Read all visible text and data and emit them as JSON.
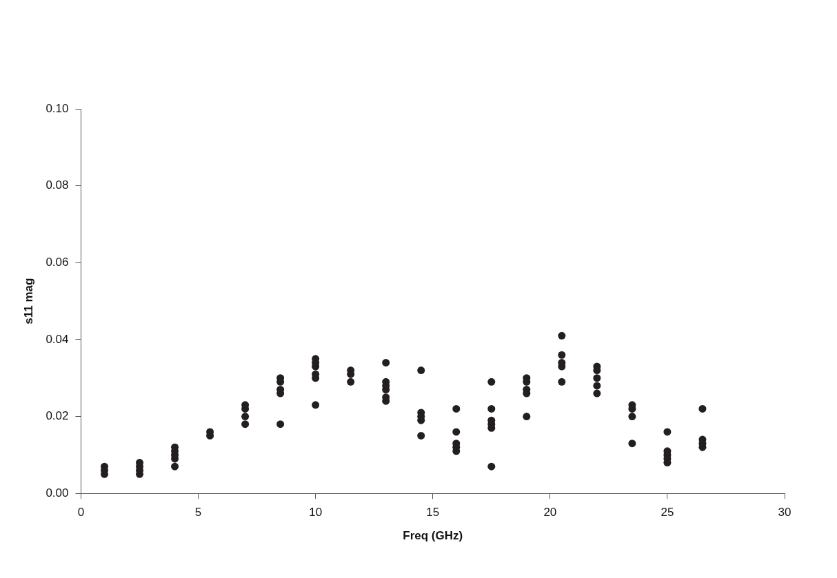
{
  "chart_data": {
    "type": "scatter",
    "xlabel": "Freq (GHz)",
    "ylabel": "s11 mag",
    "series": [
      {
        "color": "#231f20",
        "x": [
          1,
          1,
          1,
          2.5,
          2.5,
          2.5,
          2.5,
          4,
          4,
          4,
          4,
          4,
          5.5,
          5.5,
          7,
          7,
          7,
          7,
          8.5,
          8.5,
          8.5,
          8.5,
          8.5,
          10,
          10,
          10,
          10,
          10,
          10,
          11.5,
          11.5,
          11.5,
          13,
          13,
          13,
          13,
          13,
          13,
          14.5,
          14.5,
          14.5,
          14.5,
          14.5,
          16,
          16,
          16,
          16,
          16,
          17.5,
          17.5,
          17.5,
          17.5,
          17.5,
          17.5,
          19,
          19,
          19,
          19,
          19,
          20.5,
          20.5,
          20.5,
          20.5,
          20.5,
          22,
          22,
          22,
          22,
          22,
          23.5,
          23.5,
          23.5,
          23.5,
          25,
          25,
          25,
          25,
          25,
          26.5,
          26.5,
          26.5,
          26.5
        ],
        "values": [
          0.005,
          0.006,
          0.007,
          0.005,
          0.006,
          0.007,
          0.008,
          0.007,
          0.009,
          0.01,
          0.011,
          0.012,
          0.015,
          0.016,
          0.018,
          0.02,
          0.022,
          0.023,
          0.018,
          0.026,
          0.027,
          0.029,
          0.03,
          0.023,
          0.03,
          0.031,
          0.033,
          0.034,
          0.035,
          0.029,
          0.031,
          0.032,
          0.034,
          0.024,
          0.025,
          0.027,
          0.028,
          0.029,
          0.032,
          0.021,
          0.02,
          0.019,
          0.015,
          0.022,
          0.016,
          0.013,
          0.012,
          0.011,
          0.029,
          0.022,
          0.019,
          0.018,
          0.017,
          0.007,
          0.03,
          0.029,
          0.027,
          0.026,
          0.02,
          0.041,
          0.036,
          0.034,
          0.033,
          0.029,
          0.033,
          0.032,
          0.03,
          0.028,
          0.026,
          0.023,
          0.022,
          0.02,
          0.013,
          0.016,
          0.011,
          0.01,
          0.009,
          0.008,
          0.022,
          0.014,
          0.013,
          0.012
        ]
      }
    ],
    "xlim": [
      0,
      30
    ],
    "xticks": [
      0,
      5,
      10,
      15,
      20,
      25,
      30
    ],
    "ylim": [
      0,
      0.1
    ],
    "yticks": [
      {
        "value": 0,
        "label": "0.00"
      },
      {
        "value": 0.02,
        "label": "0.02"
      },
      {
        "value": 0.04,
        "label": "0.04"
      },
      {
        "value": 0.06,
        "label": "0.06"
      },
      {
        "value": 0.08,
        "label": "0.08"
      },
      {
        "value": 0.1,
        "label": "0.10"
      }
    ],
    "marker": "circle",
    "grid": false,
    "legend": false
  }
}
